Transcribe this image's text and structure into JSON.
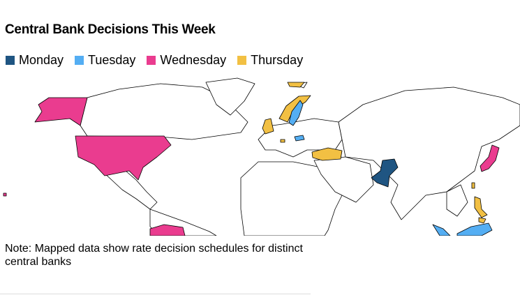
{
  "header": {
    "title": "Central Bank Decisions This Week"
  },
  "legend": [
    {
      "name": "Monday",
      "color": "#1f5582"
    },
    {
      "name": "Tuesday",
      "color": "#54aef3"
    },
    {
      "name": "Wednesday",
      "color": "#ea3c8f"
    },
    {
      "name": "Thursday",
      "color": "#f2c043"
    }
  ],
  "note": "Note: Mapped data show rate decision schedules for distinct central banks"
}
